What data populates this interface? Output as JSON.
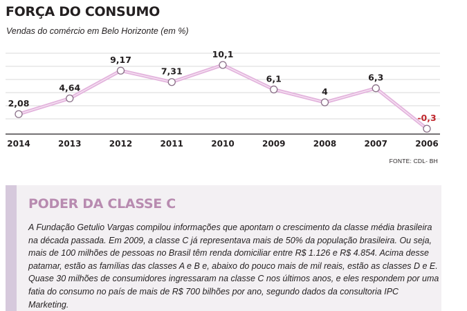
{
  "header": {
    "title": "FORÇA DO CONSUMO",
    "subtitle": "Vendas do comércio em Belo Horizonte (em %)"
  },
  "chart_data": {
    "type": "line",
    "title": "FORÇA DO CONSUMO",
    "subtitle": "Vendas do comércio em Belo Horizonte (em %)",
    "categories": [
      "2014",
      "2013",
      "2012",
      "2011",
      "2010",
      "2009",
      "2008",
      "2007",
      "2006"
    ],
    "series": [
      {
        "values": [
          2.08,
          4.64,
          9.17,
          7.31,
          10.1,
          6.1,
          4,
          6.3,
          -0.3
        ],
        "labels": [
          "2,08",
          "4,64",
          "9,17",
          "7,31",
          "10,1",
          "6,1",
          "4",
          "6,3",
          "-0,3"
        ]
      }
    ],
    "ylim": [
      -0.5,
      11
    ],
    "grid": true,
    "line_color": "#e3b4dd",
    "negative_label_color": "#c0272d"
  },
  "source": "FONTE: CDL- BH",
  "box": {
    "title": "PODER DA CLASSE C",
    "body": "A Fundação Getulio Vargas compilou informações que apontam o crescimento da classe média brasileira na década passada. Em 2009, a classe C já representava mais de 50% da população brasileira. Ou seja, mais de 100 milhões de pessoas no Brasil têm renda domiciliar entre R$ 1.126 e R$ 4.854. Acima desse patamar, estão as famílias das classes A e B e, abaixo do pouco mais de mil reais, estão as classes D e E. Quase 30 milhões de consumidores ingressaram na classe C nos últimos anos, e eles respondem por uma fatia do consumo no país de mais de R$ 700 bilhões por ano, segundo dados da consultoria IPC Marketing."
  }
}
